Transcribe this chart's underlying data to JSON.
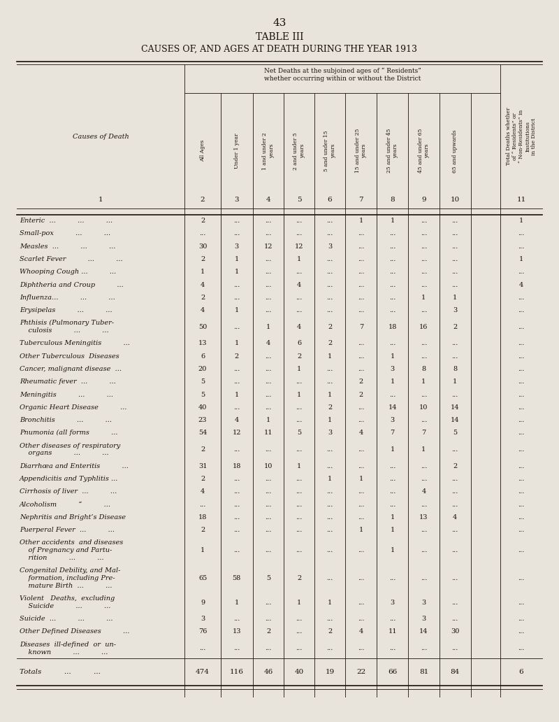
{
  "page_number": "43",
  "title1": "TABLE III",
  "title2": "CAUSES OF, AND AGES AT DEATH DURING THE YEAR 1913",
  "header_span": "Net Deaths at the subjoined ages of “ Residents” whether occurring within or without the District",
  "last_col_header": "Total Deaths whether of “ Residents” or “ Non-Residents” in Institutions in the District",
  "col_header_labels": [
    "All Ages",
    "Under 1 year",
    "1 and under 2\nyears",
    "2 and under 5\nyears",
    "5 and under 15\nyears",
    "15 and under 25\nyears",
    "25 and under 45\nyears",
    "45 and under 65\nyears",
    "65 and upwards"
  ],
  "col_numbers": [
    "1",
    "2",
    "3",
    "4",
    "5",
    "6",
    "7",
    "8",
    "9",
    "10",
    "11"
  ],
  "rows": [
    {
      "cause_lines": [
        "Enteric  ...          ...          ..."
      ],
      "vals": [
        "2",
        "...",
        "...",
        "...",
        "...",
        "1",
        "1",
        "...",
        "...",
        "1"
      ]
    },
    {
      "cause_lines": [
        "Small-pox          ...          ..."
      ],
      "vals": [
        "...",
        "...",
        "...",
        "...",
        "...",
        "...",
        "...",
        "...",
        "...",
        "..."
      ]
    },
    {
      "cause_lines": [
        "Measles  ...          ...          ..."
      ],
      "vals": [
        "30",
        "3",
        "12",
        "12",
        "3",
        "...",
        "...",
        "...",
        "...",
        "..."
      ]
    },
    {
      "cause_lines": [
        "Scarlet Fever          ...          ..."
      ],
      "vals": [
        "2",
        "1",
        "...",
        "1",
        "...",
        "...",
        "...",
        "...",
        "...",
        "1"
      ]
    },
    {
      "cause_lines": [
        "Whooping Cough ...          ..."
      ],
      "vals": [
        "1",
        "1",
        "...",
        "...",
        "...",
        "...",
        "...",
        "...",
        "...",
        "..."
      ]
    },
    {
      "cause_lines": [
        "Diphtheria and Croup          ..."
      ],
      "vals": [
        "4",
        "...",
        "...",
        "4",
        "...",
        "...",
        "...",
        "...",
        "...",
        "4"
      ]
    },
    {
      "cause_lines": [
        "Influenza...          ...          ..."
      ],
      "vals": [
        "2",
        "...",
        "...",
        "...",
        "...",
        "...",
        "...",
        "1",
        "1",
        "..."
      ]
    },
    {
      "cause_lines": [
        "Erysipelas          ...          ..."
      ],
      "vals": [
        "4",
        "1",
        "...",
        "...",
        "...",
        "...",
        "...",
        "...",
        "3",
        "..."
      ]
    },
    {
      "cause_lines": [
        "Phthisis (Pulmonary Tuber-",
        "    culosis          ...          ..."
      ],
      "vals": [
        "50",
        "...",
        "1",
        "4",
        "2",
        "7",
        "18",
        "16",
        "2",
        "..."
      ]
    },
    {
      "cause_lines": [
        "Tuberculous Meningitis          ..."
      ],
      "vals": [
        "13",
        "1",
        "4",
        "6",
        "2",
        "...",
        "...",
        "...",
        "...",
        "..."
      ]
    },
    {
      "cause_lines": [
        "Other Tuberculous  Diseases"
      ],
      "vals": [
        "6",
        "2",
        "...",
        "2",
        "1",
        "...",
        "1",
        "...",
        "...",
        "..."
      ]
    },
    {
      "cause_lines": [
        "Cancer, malignant disease  ..."
      ],
      "vals": [
        "20",
        "...",
        "...",
        "1",
        "...",
        "...",
        "3",
        "8",
        "8",
        "..."
      ]
    },
    {
      "cause_lines": [
        "Rheumatic fever  ...          ..."
      ],
      "vals": [
        "5",
        "...",
        "...",
        "...",
        "...",
        "2",
        "1",
        "1",
        "1",
        "..."
      ]
    },
    {
      "cause_lines": [
        "Meningitis          ...          ..."
      ],
      "vals": [
        "5",
        "1",
        "...",
        "1",
        "1",
        "2",
        "...",
        "...",
        "...",
        "..."
      ]
    },
    {
      "cause_lines": [
        "Organic Heart Disease          ..."
      ],
      "vals": [
        "40",
        "...",
        "...",
        "...",
        "2",
        "...",
        "14",
        "10",
        "14",
        "..."
      ]
    },
    {
      "cause_lines": [
        "Bronchitis          ...          ..."
      ],
      "vals": [
        "23",
        "4",
        "1",
        "...",
        "1",
        "...",
        "3",
        "...",
        "14",
        "..."
      ]
    },
    {
      "cause_lines": [
        "Pnumonia (all forms          ..."
      ],
      "vals": [
        "54",
        "12",
        "11",
        "5",
        "3",
        "4",
        "7",
        "7",
        "5",
        "..."
      ]
    },
    {
      "cause_lines": [
        "Other diseases of respiratory",
        "    organs          ...          ..."
      ],
      "vals": [
        "2",
        "...",
        "...",
        "...",
        "...",
        "...",
        "1",
        "1",
        "...",
        "..."
      ]
    },
    {
      "cause_lines": [
        "Diarrhœa and Enteritis          ..."
      ],
      "vals": [
        "31",
        "18",
        "10",
        "1",
        "...",
        "...",
        "...",
        "...",
        "2",
        "..."
      ]
    },
    {
      "cause_lines": [
        "Appendicitis and Typhlitis ..."
      ],
      "vals": [
        "2",
        "...",
        "...",
        "...",
        "1",
        "1",
        "...",
        "...",
        "...",
        "..."
      ]
    },
    {
      "cause_lines": [
        "Cirrhosis of liver  ...          ..."
      ],
      "vals": [
        "4",
        "...",
        "...",
        "...",
        "...",
        "...",
        "...",
        "4",
        "...",
        "..."
      ]
    },
    {
      "cause_lines": [
        "Alcoholism          “          ..."
      ],
      "vals": [
        "...",
        "...",
        "...",
        "...",
        "...",
        "...",
        "...",
        "...",
        "...",
        "..."
      ]
    },
    {
      "cause_lines": [
        "Nephritis and Bright’s Disease"
      ],
      "vals": [
        "18",
        "...",
        "...",
        "...",
        "...",
        "...",
        "1",
        "13",
        "4",
        "..."
      ]
    },
    {
      "cause_lines": [
        "Puerperal Fever  ...          ..."
      ],
      "vals": [
        "2",
        "...",
        "...",
        "...",
        "...",
        "1",
        "1",
        "...",
        "...",
        "..."
      ]
    },
    {
      "cause_lines": [
        "Other accidents  and diseases",
        "    of Pregnancy and Partu-",
        "    rition          ...          ..."
      ],
      "vals": [
        "1",
        "...",
        "...",
        "...",
        "...",
        "...",
        "1",
        "...",
        "...",
        "..."
      ]
    },
    {
      "cause_lines": [
        "Congenital Debility, and Mal-",
        "    formation, including Pre-",
        "    mature Birth  ...          ..."
      ],
      "vals": [
        "65",
        "58",
        "5",
        "2",
        "...",
        "...",
        "...",
        "...",
        "...",
        "..."
      ]
    },
    {
      "cause_lines": [
        "Violent   Deaths,  excluding",
        "    Suicide          ...          ..."
      ],
      "vals": [
        "9",
        "1",
        "...",
        "1",
        "1",
        "...",
        "3",
        "3",
        "...",
        "..."
      ]
    },
    {
      "cause_lines": [
        "Suicide  ...          ...          ..."
      ],
      "vals": [
        "3",
        "...",
        "...",
        "...",
        "...",
        "...",
        "...",
        "3",
        "...",
        "..."
      ]
    },
    {
      "cause_lines": [
        "Other Defined Diseases          ..."
      ],
      "vals": [
        "76",
        "13",
        "2",
        "...",
        "2",
        "4",
        "11",
        "14",
        "30",
        "..."
      ]
    },
    {
      "cause_lines": [
        "Diseases  ill-defined  or  un-",
        "    known          ...          ..."
      ],
      "vals": [
        "...",
        "...",
        "...",
        "...",
        "...",
        "...",
        "...",
        "...",
        "...",
        "..."
      ]
    }
  ],
  "totals": [
    "474",
    "116",
    "46",
    "40",
    "19",
    "22",
    "66",
    "81",
    "84",
    "6"
  ],
  "bg_color": "#e8e4dc",
  "text_color": "#1a1008",
  "font_size": 7.5,
  "title_font_size": 10
}
